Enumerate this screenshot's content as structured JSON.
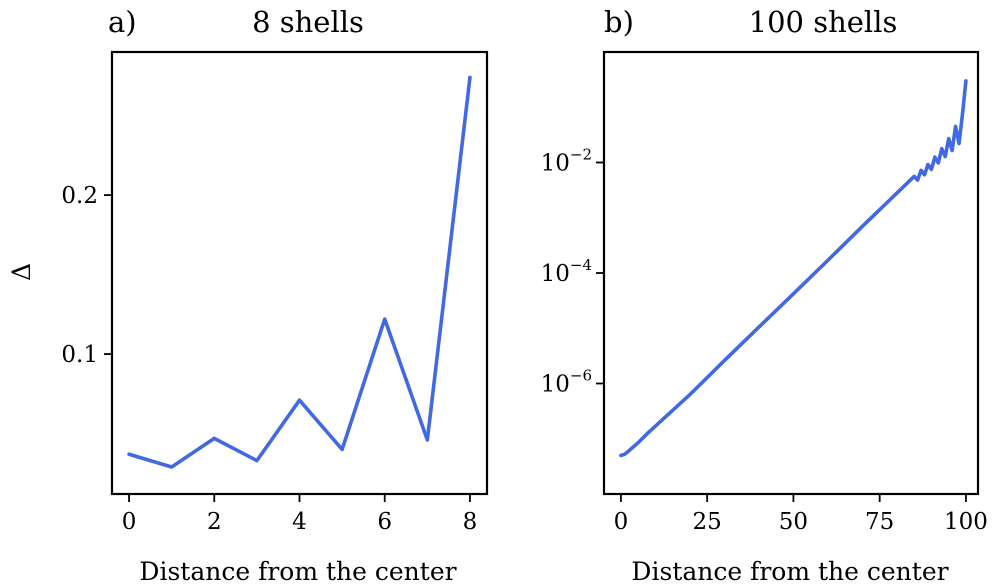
{
  "figure": {
    "background": "#ffffff",
    "line_color": "#4169e1"
  },
  "chart_data": [
    {
      "panel": "a)",
      "type": "line",
      "title": "8 shells",
      "xlabel": "Distance from the center",
      "ylabel": "Δ",
      "yscale": "linear",
      "xlim": [
        -0.4,
        8.4
      ],
      "ylim": [
        0.012,
        0.29
      ],
      "xticks": [
        0,
        2,
        4,
        6,
        8
      ],
      "xtick_labels": [
        "0",
        "2",
        "4",
        "6",
        "8"
      ],
      "yticks": [
        0.1,
        0.2
      ],
      "ytick_labels": [
        "0.1",
        "0.2"
      ],
      "series": [
        {
          "name": "8 shells",
          "color": "#4169e1",
          "x": [
            0,
            1,
            2,
            3,
            4,
            5,
            6,
            7,
            8
          ],
          "y": [
            0.037,
            0.029,
            0.047,
            0.033,
            0.071,
            0.04,
            0.122,
            0.046,
            0.274
          ]
        }
      ]
    },
    {
      "panel": "b)",
      "type": "line",
      "title": "100 shells",
      "xlabel": "Distance from the center",
      "ylabel": "",
      "yscale": "log",
      "xlim": [
        -4.9,
        103.5
      ],
      "ylim": [
        1e-08,
        1.0
      ],
      "xticks": [
        0,
        25,
        50,
        75,
        100
      ],
      "xtick_labels": [
        "0",
        "25",
        "50",
        "75",
        "100"
      ],
      "yticks": [
        1e-06,
        0.0001,
        0.01
      ],
      "ytick_labels": [
        {
          "base": "10",
          "exp": "−6"
        },
        {
          "base": "10",
          "exp": "−4"
        },
        {
          "base": "10",
          "exp": "−2"
        }
      ],
      "series": [
        {
          "name": "100 shells",
          "color": "#4169e1",
          "x": [
            0,
            1,
            2,
            3,
            5,
            8,
            12,
            20,
            30,
            40,
            50,
            60,
            70,
            80,
            85,
            86,
            87,
            88,
            89,
            90,
            91,
            92,
            93,
            94,
            95,
            96,
            97,
            98,
            99,
            100
          ],
          "y": [
            5e-08,
            5.2e-08,
            5.8e-08,
            6.6e-08,
            8.5e-08,
            1.3e-07,
            2.2e-07,
            6.3e-07,
            2.6e-06,
            1.05e-05,
            4.2e-05,
            0.00017,
            0.0007,
            0.0028,
            0.0056,
            0.0048,
            0.0072,
            0.006,
            0.0092,
            0.0075,
            0.0125,
            0.0098,
            0.0178,
            0.0128,
            0.027,
            0.0165,
            0.045,
            0.022,
            0.075,
            0.3
          ]
        }
      ]
    }
  ]
}
